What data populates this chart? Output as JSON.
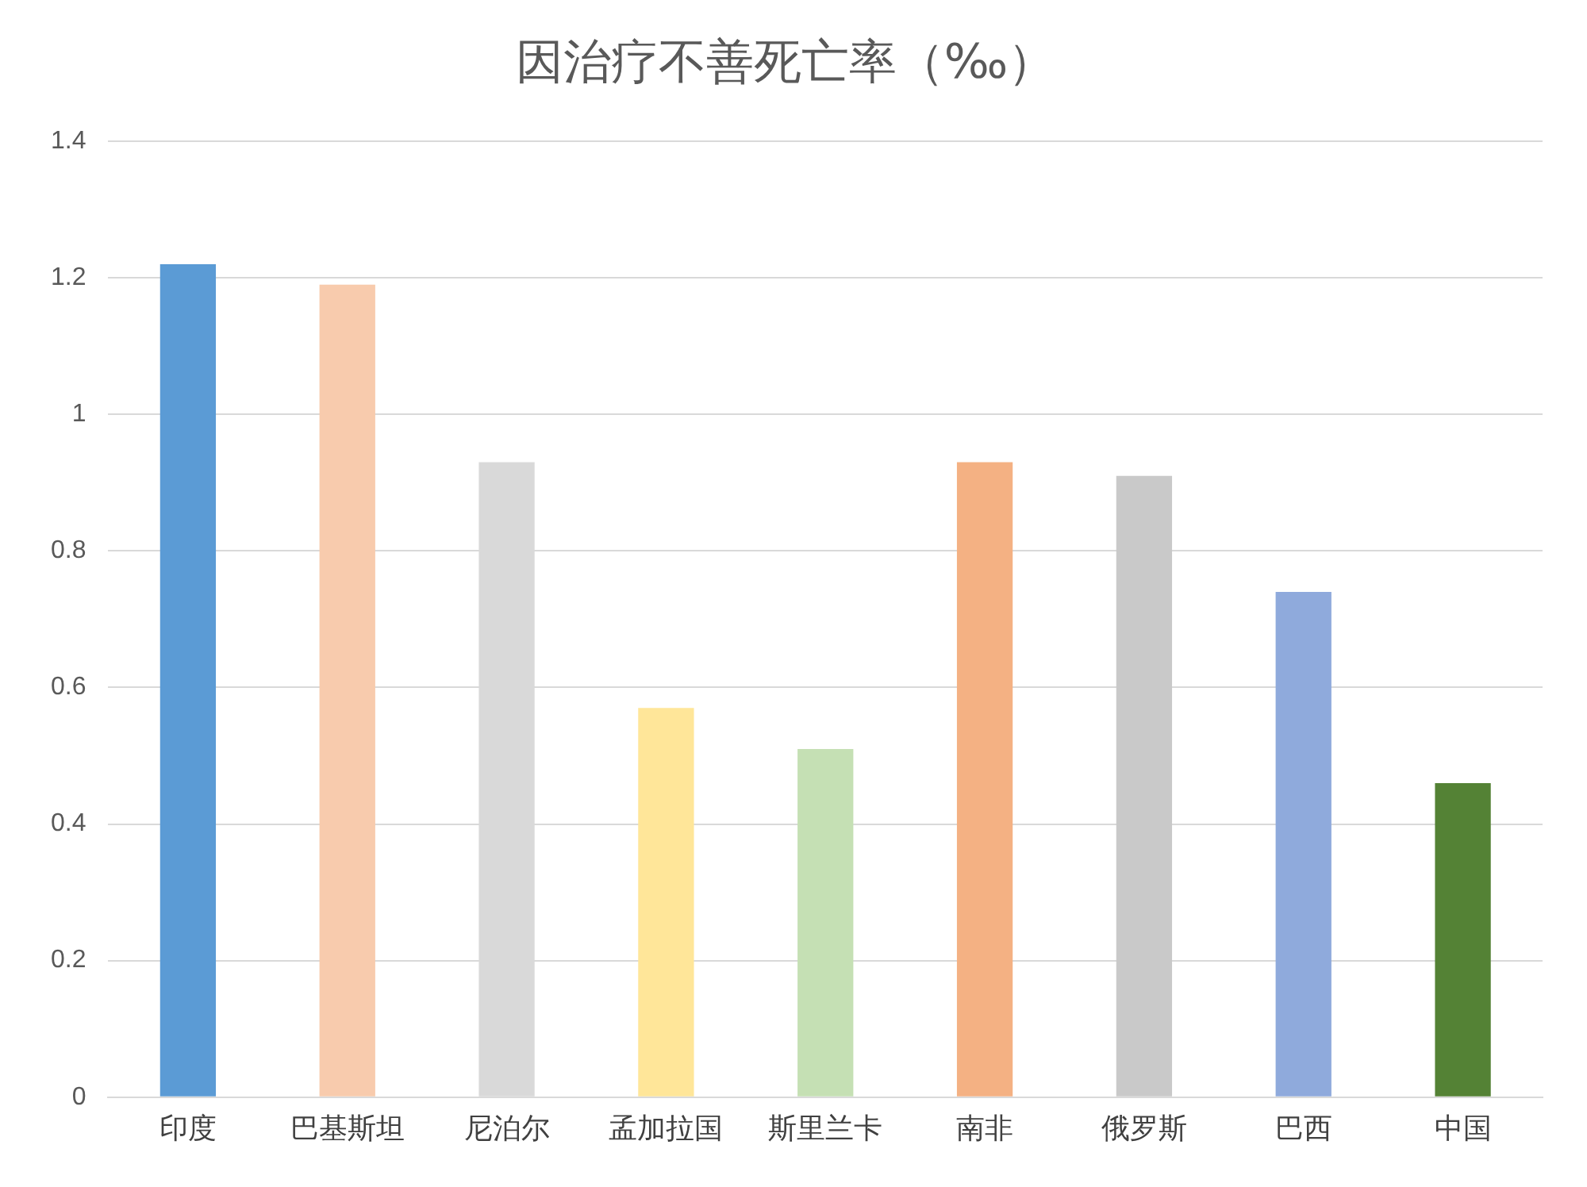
{
  "chart_data": {
    "type": "bar",
    "title": "因治疗不善死亡率（‰）",
    "categories": [
      "印度",
      "巴基斯坦",
      "尼泊尔",
      "孟加拉国",
      "斯里兰卡",
      "南非",
      "俄罗斯",
      "巴西",
      "中国"
    ],
    "values": [
      1.22,
      1.19,
      0.93,
      0.57,
      0.51,
      0.93,
      0.91,
      0.74,
      0.46
    ],
    "colors": [
      "#5b9bd5",
      "#f8cbad",
      "#d9d9d9",
      "#ffe699",
      "#c5e0b4",
      "#f4b183",
      "#c9c9c9",
      "#8faadc",
      "#548235"
    ],
    "ylim": [
      0,
      1.4
    ],
    "yticks": [
      0,
      0.2,
      0.4,
      0.6,
      0.8,
      1,
      1.2,
      1.4
    ],
    "grid": "y",
    "legend": false
  }
}
